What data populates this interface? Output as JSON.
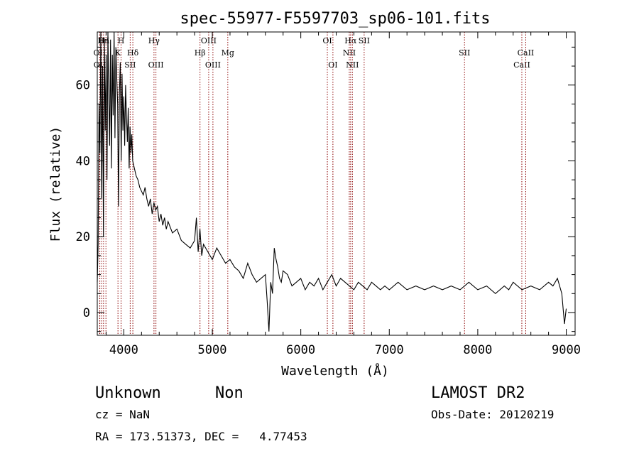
{
  "chart_data": {
    "type": "line",
    "title": "spec-55977-F5597703_sp06-101.fits",
    "xlabel": "Wavelength (Å)",
    "ylabel": "Flux (relative)",
    "xlim": [
      3700,
      9100
    ],
    "ylim": [
      -6,
      74
    ],
    "x_ticks": [
      4000,
      5000,
      6000,
      7000,
      8000,
      9000
    ],
    "y_ticks": [
      0,
      20,
      40,
      60
    ],
    "grid": false,
    "legend": "none",
    "line_color": "#000000",
    "marker_color": "#8b0000",
    "series": [
      {
        "x": [
          3700,
          3710,
          3720,
          3730,
          3740,
          3750,
          3760,
          3770,
          3780,
          3790,
          3800,
          3810,
          3820,
          3830,
          3840,
          3850,
          3860,
          3870,
          3880,
          3890,
          3900,
          3910,
          3920,
          3930,
          3940,
          3950,
          3960,
          3970,
          3980,
          3990,
          4000,
          4010,
          4020,
          4030,
          4040,
          4050,
          4060,
          4070,
          4080,
          4090,
          4100,
          4120,
          4140,
          4160,
          4180,
          4200,
          4220,
          4240,
          4260,
          4280,
          4300,
          4320,
          4340,
          4360,
          4380,
          4400,
          4420,
          4440,
          4460,
          4480,
          4500,
          4550,
          4600,
          4650,
          4700,
          4750,
          4800,
          4820,
          4840,
          4860,
          4880,
          4900,
          4950,
          5000,
          5050,
          5100,
          5150,
          5200,
          5250,
          5300,
          5350,
          5400,
          5450,
          5500,
          5550,
          5600,
          5620,
          5640,
          5660,
          5680,
          5700,
          5720,
          5740,
          5760,
          5780,
          5800,
          5850,
          5900,
          5950,
          6000,
          6050,
          6100,
          6150,
          6200,
          6250,
          6300,
          6350,
          6400,
          6450,
          6500,
          6550,
          6600,
          6650,
          6700,
          6750,
          6800,
          6850,
          6900,
          6950,
          7000,
          7100,
          7200,
          7300,
          7400,
          7500,
          7600,
          7700,
          7800,
          7900,
          8000,
          8100,
          8200,
          8300,
          8350,
          8400,
          8500,
          8600,
          8700,
          8800,
          8850,
          8900,
          8950,
          8980,
          9000
        ],
        "y": [
          8,
          18,
          55,
          42,
          74,
          30,
          65,
          20,
          72,
          48,
          68,
          35,
          74,
          58,
          44,
          72,
          38,
          68,
          52,
          74,
          46,
          70,
          62,
          55,
          28,
          58,
          66,
          40,
          63,
          48,
          57,
          44,
          60,
          52,
          45,
          54,
          38,
          49,
          42,
          47,
          40,
          38,
          36,
          35,
          33,
          32,
          31,
          33,
          30,
          28,
          30,
          26,
          29,
          27,
          28,
          24,
          26,
          23,
          25,
          22,
          24,
          21,
          22,
          19,
          18,
          17,
          19,
          25,
          16,
          22,
          15,
          18,
          16,
          14,
          17,
          15,
          13,
          14,
          12,
          11,
          9,
          13,
          10,
          8,
          9,
          10,
          3,
          -5,
          8,
          5,
          17,
          14,
          12,
          9,
          8,
          11,
          10,
          7,
          8,
          9,
          6,
          8,
          7,
          9,
          6,
          8,
          10,
          7,
          9,
          8,
          7,
          6,
          8,
          7,
          6,
          8,
          7,
          6,
          7,
          6,
          8,
          6,
          7,
          6,
          7,
          6,
          7,
          6,
          8,
          6,
          7,
          5,
          7,
          6,
          8,
          6,
          7,
          6,
          8,
          7,
          9,
          5,
          -3,
          1
        ]
      }
    ],
    "line_markers": [
      {
        "label": "OII",
        "x": 3727,
        "row": 2
      },
      {
        "label": "OII",
        "x": 3729,
        "row": 3
      },
      {
        "label": "H",
        "x": 3750,
        "row": 1
      },
      {
        "label": "Hn",
        "x": 3771,
        "row": 1
      },
      {
        "label": "H",
        "x": 3798,
        "row": 1
      },
      {
        "label": "K",
        "x": 3934,
        "row": 2
      },
      {
        "label": "H",
        "x": 3969,
        "row": 1
      },
      {
        "label": "SII",
        "x": 4072,
        "row": 3
      },
      {
        "label": "Hδ",
        "x": 4102,
        "row": 2
      },
      {
        "label": "Hγ",
        "x": 4341,
        "row": 1
      },
      {
        "label": "OIII",
        "x": 4363,
        "row": 3
      },
      {
        "label": "Hβ",
        "x": 4861,
        "row": 2
      },
      {
        "label": "OIII",
        "x": 4959,
        "row": 1
      },
      {
        "label": "OIII",
        "x": 5007,
        "row": 3
      },
      {
        "label": "Mg",
        "x": 5175,
        "row": 2
      },
      {
        "label": "OI",
        "x": 6300,
        "row": 1
      },
      {
        "label": "OI",
        "x": 6363,
        "row": 3
      },
      {
        "label": "NII",
        "x": 6548,
        "row": 2
      },
      {
        "label": "Hα",
        "x": 6563,
        "row": 1
      },
      {
        "label": "NII",
        "x": 6583,
        "row": 3
      },
      {
        "label": "SII",
        "x": 6716,
        "row": 1
      },
      {
        "label": "SII",
        "x": 7850,
        "row": 2
      },
      {
        "label": "CaII",
        "x": 8498,
        "row": 3
      },
      {
        "label": "CaII",
        "x": 8542,
        "row": 2
      }
    ]
  },
  "footer": {
    "class_label": "Unknown",
    "subclass_label": "Non",
    "survey": "LAMOST DR2",
    "cz": "cz = NaN",
    "obs_date": "Obs-Date: 20120219",
    "radec": "RA = 173.51373, DEC =   4.77453"
  }
}
